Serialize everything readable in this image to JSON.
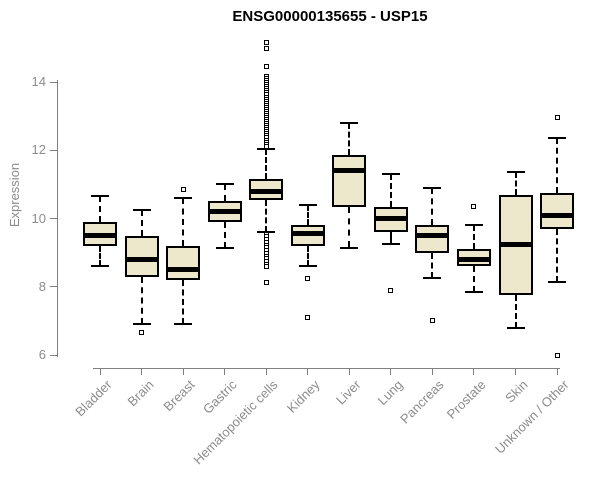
{
  "title": "ENSG00000135655 - USP15",
  "y_axis": {
    "label": "Expression",
    "ticks": [
      "14",
      "12",
      "10",
      "8",
      "6"
    ]
  },
  "colors": {
    "box_fill": "#EDE8CC",
    "box_border": "#000000",
    "median": "#000000",
    "axis_line": "#808080",
    "tick_label": "#8c8c8c",
    "title": "#000000",
    "background": "#ffffff"
  },
  "chart_data": {
    "type": "boxplot",
    "title": "ENSG00000135655 - USP15",
    "xlabel": "",
    "ylabel": "Expression",
    "yticks": [
      6,
      8,
      10,
      12,
      14
    ],
    "ylim": [
      5.8,
      15.4
    ],
    "grid": false,
    "legend": "none",
    "categories": [
      "Bladder",
      "Brain",
      "Breast",
      "Gastric",
      "Hematopoietic cells",
      "Kidney",
      "Liver",
      "Lung",
      "Pancreas",
      "Prostate",
      "Skin",
      "Unknown / Other"
    ],
    "series": [
      {
        "name": "Bladder",
        "whisker_low": 8.6,
        "q1": 9.2,
        "median": 9.5,
        "q3": 9.9,
        "whisker_high": 10.65,
        "outliers": []
      },
      {
        "name": "Brain",
        "whisker_low": 6.9,
        "q1": 8.3,
        "median": 8.8,
        "q3": 9.5,
        "whisker_high": 10.25,
        "outliers": [
          6.65
        ]
      },
      {
        "name": "Breast",
        "whisker_low": 6.9,
        "q1": 8.2,
        "median": 8.5,
        "q3": 9.2,
        "whisker_high": 10.6,
        "outliers": [
          10.85
        ]
      },
      {
        "name": "Gastric",
        "whisker_low": 9.15,
        "q1": 9.9,
        "median": 10.2,
        "q3": 10.5,
        "whisker_high": 11.0,
        "outliers": []
      },
      {
        "name": "Hematopoietic cells",
        "whisker_low": 9.6,
        "q1": 10.55,
        "median": 10.8,
        "q3": 11.15,
        "whisker_high": 12.05,
        "outliers": [
          15.15,
          14.98,
          14.45,
          14.16,
          14.1,
          14.04,
          13.98,
          13.92,
          13.86,
          13.8,
          13.74,
          13.68,
          13.62,
          13.56,
          13.5,
          13.44,
          13.38,
          13.32,
          13.26,
          13.2,
          13.14,
          13.08,
          13.02,
          12.96,
          12.9,
          12.84,
          12.78,
          12.72,
          12.66,
          12.6,
          12.54,
          12.48,
          12.42,
          12.36,
          12.3,
          12.24,
          12.18,
          12.12,
          9.54,
          9.46,
          9.38,
          9.3,
          9.22,
          9.14,
          9.06,
          8.98,
          8.9,
          8.82,
          8.74,
          8.66,
          8.58,
          8.12
        ]
      },
      {
        "name": "Kidney",
        "whisker_low": 8.6,
        "q1": 9.2,
        "median": 9.55,
        "q3": 9.8,
        "whisker_high": 10.4,
        "outliers": [
          8.25,
          7.1
        ]
      },
      {
        "name": "Liver",
        "whisker_low": 9.15,
        "q1": 10.35,
        "median": 11.4,
        "q3": 11.85,
        "whisker_high": 12.8,
        "outliers": []
      },
      {
        "name": "Lung",
        "whisker_low": 9.25,
        "q1": 9.6,
        "median": 10.0,
        "q3": 10.35,
        "whisker_high": 11.3,
        "outliers": [
          7.9
        ]
      },
      {
        "name": "Pancreas",
        "whisker_low": 8.25,
        "q1": 9.0,
        "median": 9.5,
        "q3": 9.8,
        "whisker_high": 10.9,
        "outliers": [
          7.0
        ]
      },
      {
        "name": "Prostate",
        "whisker_low": 7.85,
        "q1": 8.6,
        "median": 8.8,
        "q3": 9.1,
        "whisker_high": 9.8,
        "outliers": [
          10.35
        ]
      },
      {
        "name": "Skin",
        "whisker_low": 6.8,
        "q1": 7.75,
        "median": 9.25,
        "q3": 10.7,
        "whisker_high": 11.35,
        "outliers": []
      },
      {
        "name": "Unknown / Other",
        "whisker_low": 8.15,
        "q1": 9.7,
        "median": 10.1,
        "q3": 10.75,
        "whisker_high": 12.35,
        "outliers": [
          12.95,
          6.0
        ]
      }
    ]
  }
}
